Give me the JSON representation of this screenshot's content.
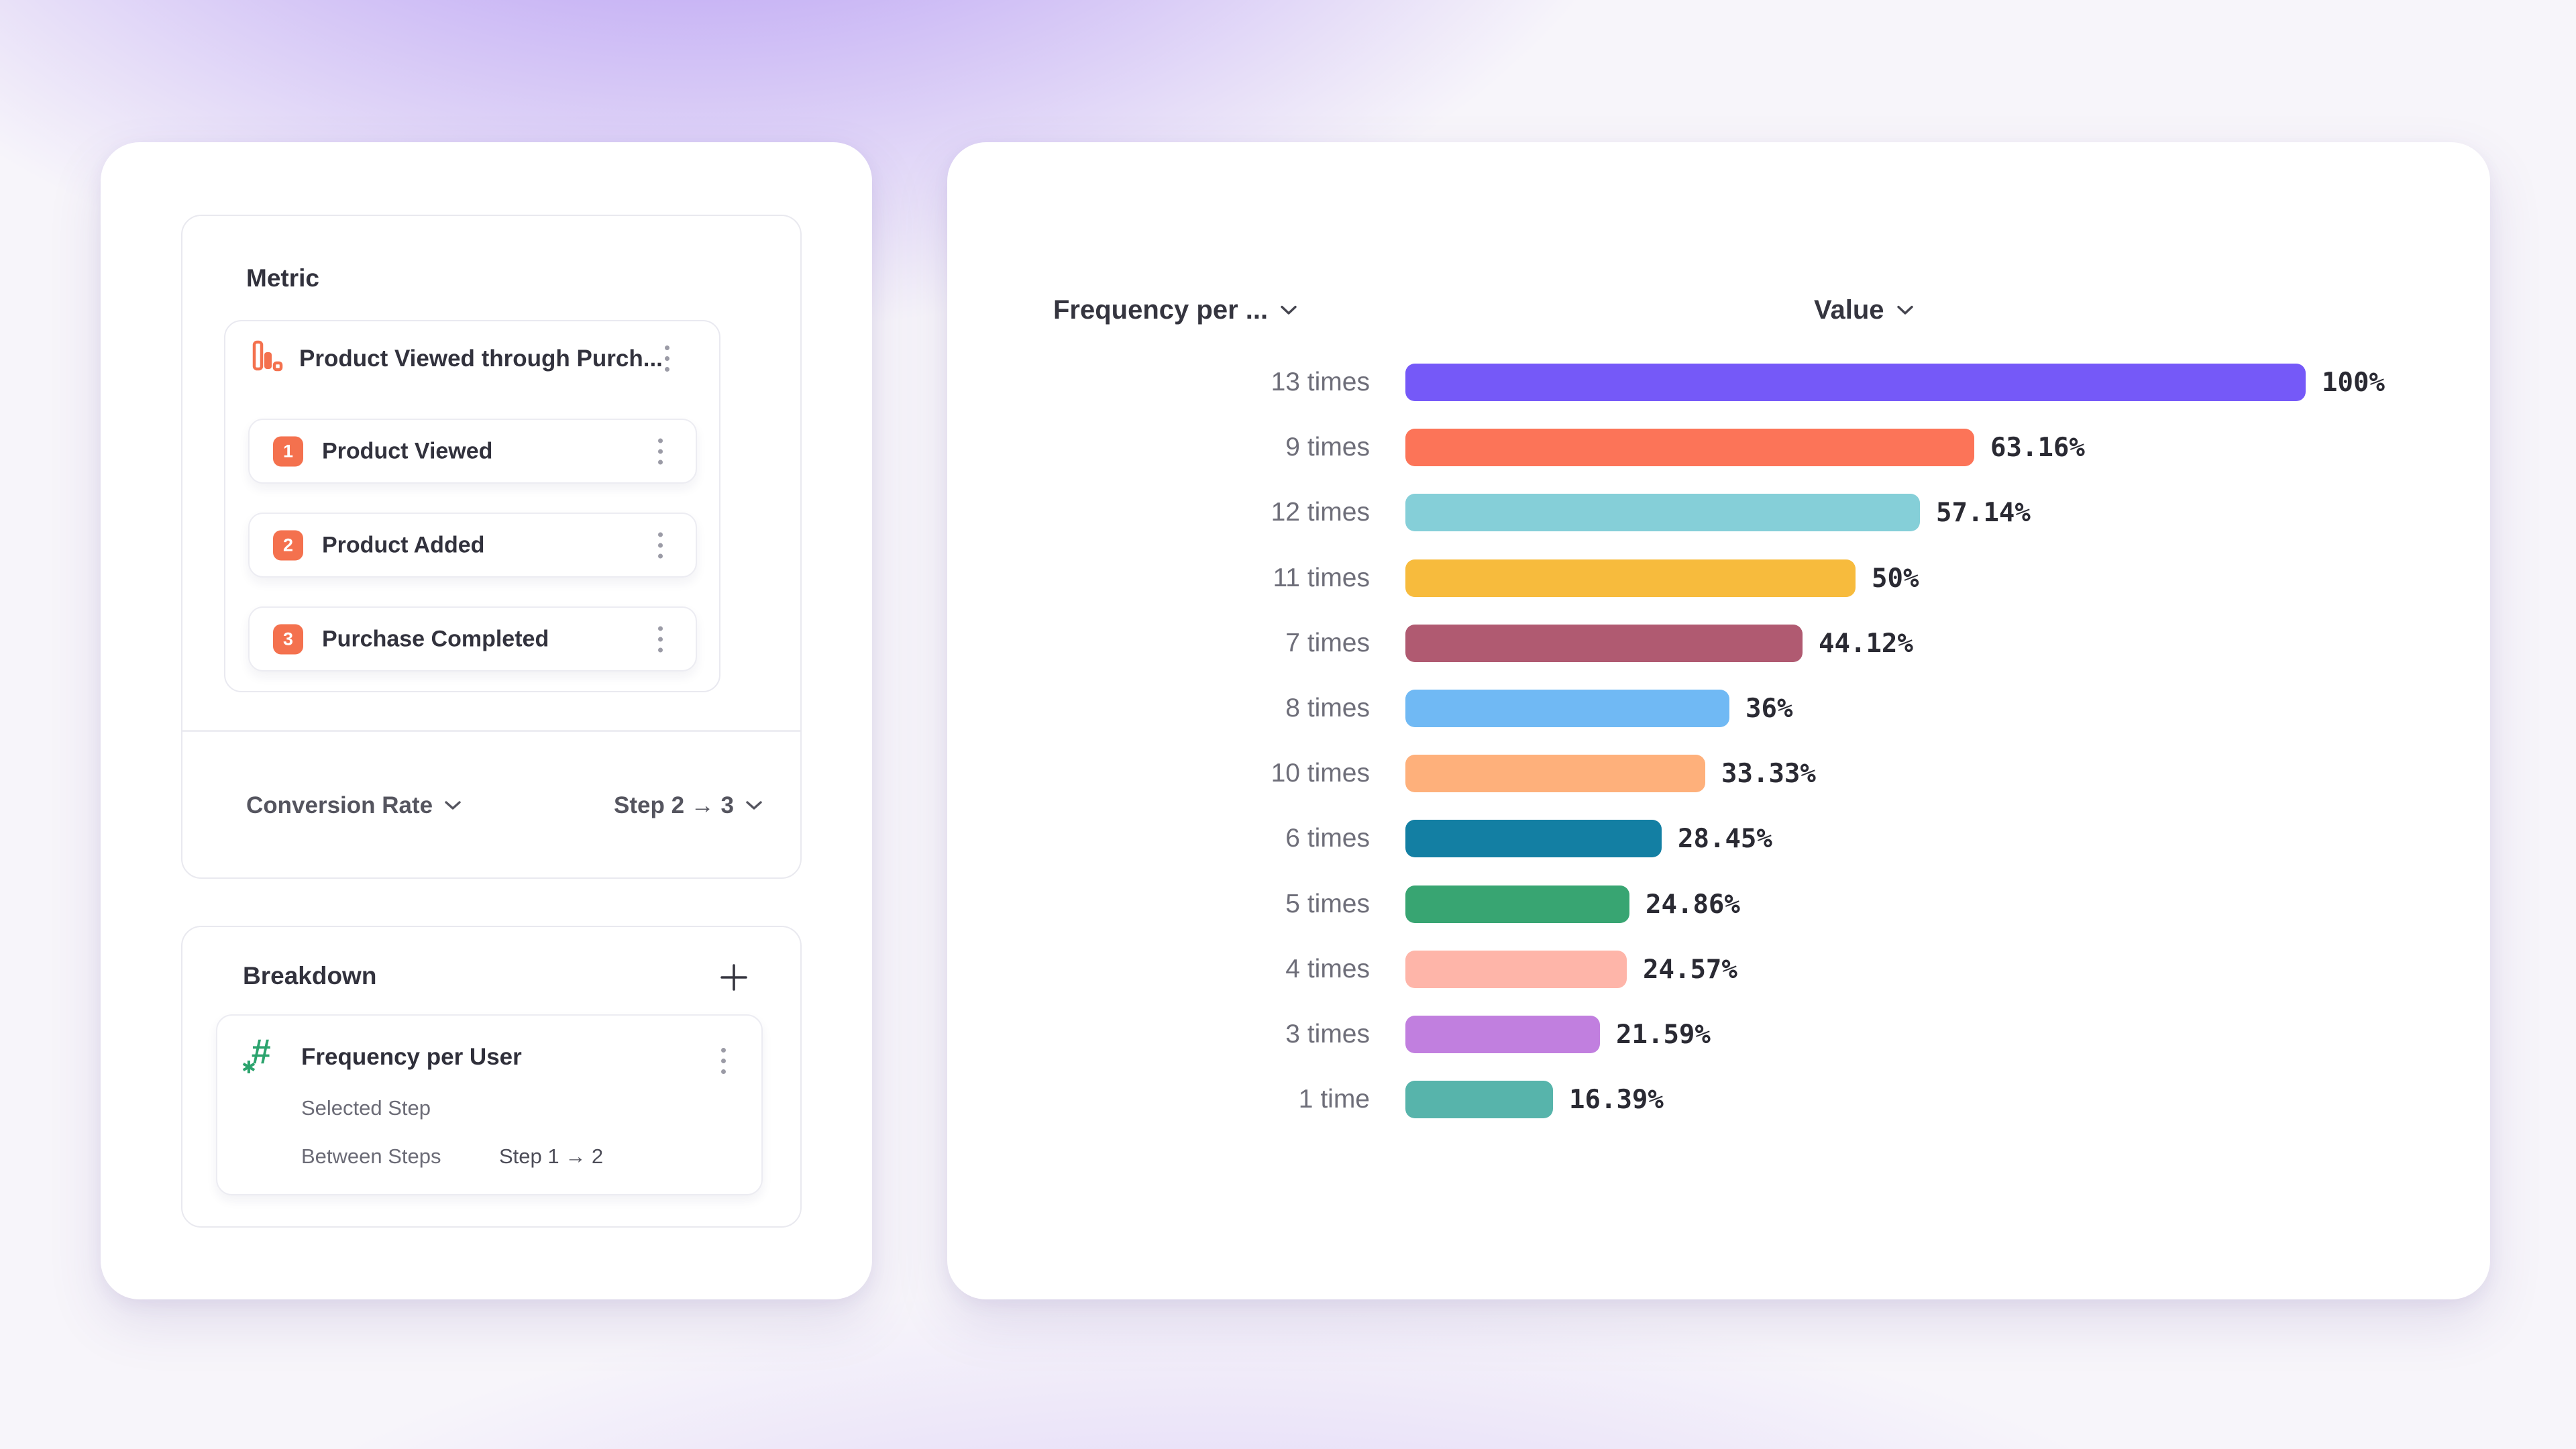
{
  "left_panel": {
    "metric_section": {
      "title": "Metric",
      "funnel": {
        "title": "Product Viewed through Purch...",
        "icon": "funnel-bars-icon",
        "steps": [
          {
            "number": "1",
            "label": "Product Viewed"
          },
          {
            "number": "2",
            "label": "Product Added"
          },
          {
            "number": "3",
            "label": "Purchase Completed"
          }
        ]
      },
      "footer": {
        "conversion_label": "Conversion Rate",
        "step_range_label": "Step 2 → 3"
      }
    },
    "breakdown_section": {
      "title": "Breakdown",
      "add_button": "plus-icon",
      "item": {
        "icon": "hash-icon",
        "title": "Frequency per User",
        "selected_step_label": "Selected Step",
        "between_steps_label": "Between Steps",
        "between_steps_value": "Step 1 → 2"
      }
    }
  },
  "chart_panel": {
    "category_header": "Frequency per ...",
    "value_header": "Value"
  },
  "chart_data": {
    "type": "bar",
    "orientation": "horizontal",
    "categories": [
      "13 times",
      "9 times",
      "12 times",
      "11 times",
      "7 times",
      "8 times",
      "10 times",
      "6 times",
      "5 times",
      "4 times",
      "3 times",
      "1 time"
    ],
    "values": [
      100,
      63.16,
      57.14,
      50,
      44.12,
      36,
      33.33,
      28.45,
      24.86,
      24.57,
      21.59,
      16.39
    ],
    "value_labels": [
      "100%",
      "63.16%",
      "57.14%",
      "50%",
      "44.12%",
      "36%",
      "33.33%",
      "28.45%",
      "24.86%",
      "24.57%",
      "21.59%",
      "16.39%"
    ],
    "bar_colors": [
      "#7559F8",
      "#FC7458",
      "#85CFD8",
      "#F7BB3D",
      "#B05A71",
      "#70B9F4",
      "#FEB07B",
      "#137FA3",
      "#38A572",
      "#FEB5A9",
      "#C17FDF",
      "#57B4AB"
    ],
    "xlim": [
      0,
      100
    ],
    "grid": false,
    "legend": false,
    "value_label_position": "end-of-bar"
  },
  "colors": {
    "accent_orange": "#F4714E",
    "accent_green": "#2BA36D",
    "text_dark": "#32323D",
    "text_gray": "#6E6E79",
    "border": "#E9E9EF"
  }
}
